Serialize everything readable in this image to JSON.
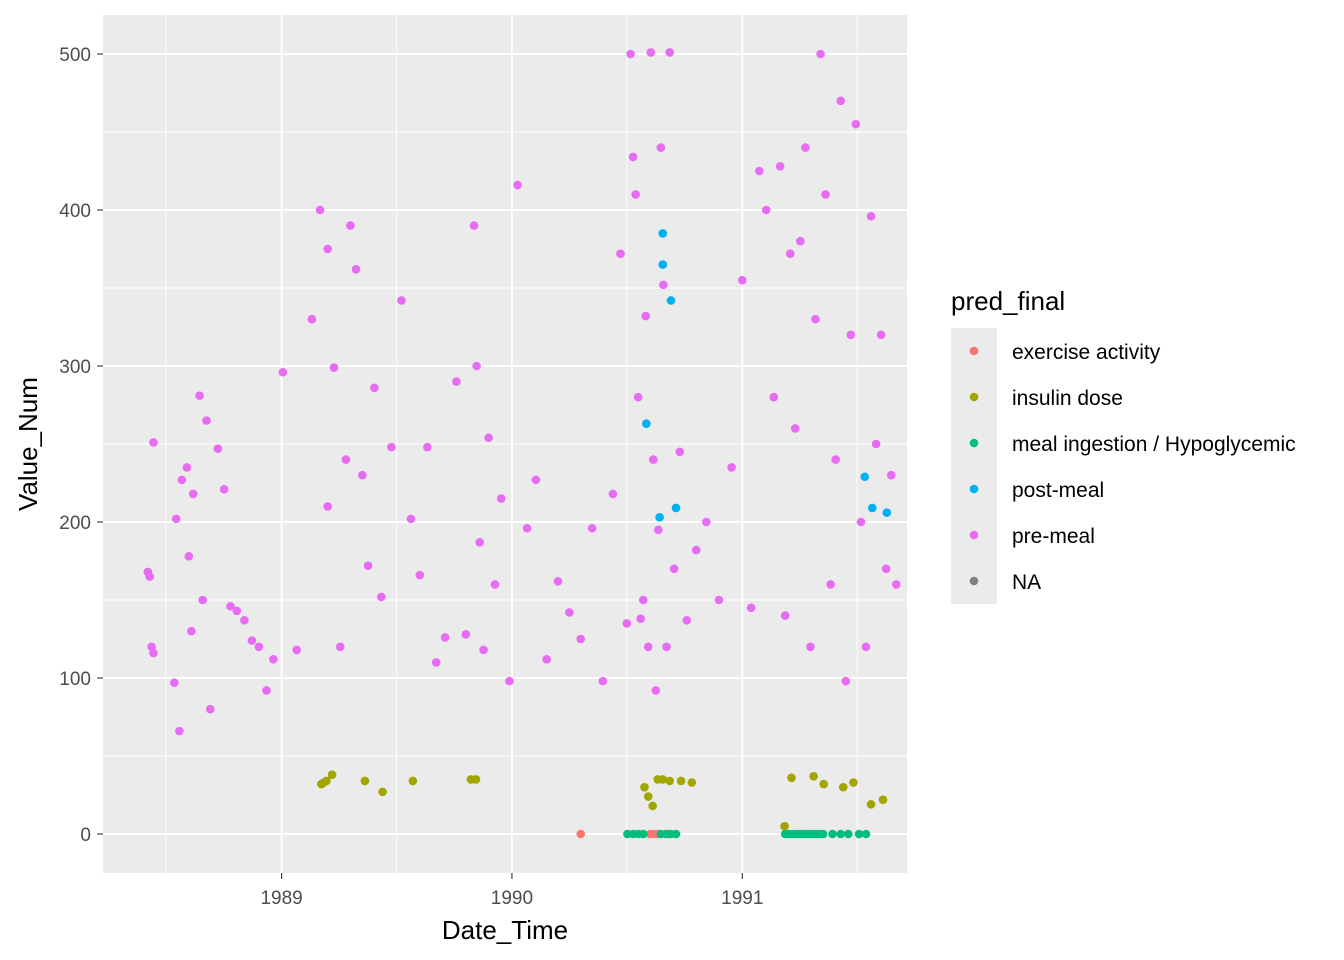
{
  "chart_data": {
    "type": "scatter",
    "title": "",
    "xlabel": "Date_Time",
    "ylabel": "Value_Num",
    "xlim": [
      "1988-03-24",
      "1991-09-19"
    ],
    "ylim": [
      -25,
      525
    ],
    "x_ticks": [
      "1989",
      "1990",
      "1991"
    ],
    "y_ticks": [
      "0",
      "100",
      "200",
      "300",
      "400",
      "500"
    ],
    "x_tick_dates": [
      "1989-01-01",
      "1990-01-01",
      "1991-01-01"
    ],
    "y_tick_values": [
      0,
      100,
      200,
      300,
      400,
      500
    ],
    "grid": true,
    "panel_background": "#EBEBEB",
    "legend": {
      "title": "pred_final",
      "position": "right",
      "entries": [
        "exercise activity",
        "insulin dose",
        "meal ingestion / Hypoglycemic",
        "post-meal",
        "pre-meal",
        "NA"
      ],
      "colors": [
        "#F8766D",
        "#A3A500",
        "#00BF7D",
        "#00B0F6",
        "#E76BF3",
        "#7F7F7F"
      ]
    },
    "series": [
      {
        "name": "exercise activity",
        "color": "#F8766D",
        "x": [
          "1990-04-20",
          "1990-08-08",
          "1990-08-15",
          "1990-08-20",
          "1990-09-05"
        ],
        "y": [
          0,
          0,
          0,
          0,
          0
        ]
      },
      {
        "name": "insulin dose",
        "color": "#A3A500",
        "x": [
          "1989-03-05",
          "1989-03-09",
          "1989-03-13",
          "1989-03-22",
          "1989-05-13",
          "1989-06-10",
          "1989-07-28",
          "1989-10-28",
          "1989-11-05",
          "1990-07-30",
          "1990-08-05",
          "1990-08-12",
          "1990-08-20",
          "1990-08-28",
          "1990-09-08",
          "1990-09-26",
          "1990-10-13",
          "1991-03-09",
          "1991-03-20",
          "1991-04-24",
          "1991-05-10",
          "1991-06-10",
          "1991-06-26",
          "1991-07-24",
          "1991-08-12"
        ],
        "y": [
          32,
          33,
          34,
          38,
          34,
          27,
          34,
          35,
          35,
          30,
          24,
          18,
          35,
          35,
          34,
          34,
          33,
          5,
          36,
          37,
          32,
          30,
          33,
          19,
          22
        ]
      },
      {
        "name": "meal ingestion / Hypoglycemic",
        "color": "#00BF7D",
        "x": [
          "1990-07-03",
          "1990-07-12",
          "1990-07-20",
          "1990-07-28",
          "1990-08-25",
          "1990-09-02",
          "1990-09-10",
          "1990-09-18",
          "1991-03-10",
          "1991-03-16",
          "1991-03-22",
          "1991-03-28",
          "1991-04-03",
          "1991-04-09",
          "1991-04-15",
          "1991-04-21",
          "1991-04-27",
          "1991-05-03",
          "1991-05-09",
          "1991-05-24",
          "1991-06-06",
          "1991-06-18",
          "1991-07-05",
          "1991-07-16"
        ],
        "y": [
          0,
          0,
          0,
          0,
          0,
          0,
          0,
          0,
          0,
          0,
          0,
          0,
          0,
          0,
          0,
          0,
          0,
          0,
          0,
          0,
          0,
          0,
          0,
          0
        ]
      },
      {
        "name": "post-meal",
        "color": "#00B0F6",
        "x": [
          "1990-08-02",
          "1990-08-23",
          "1990-08-28",
          "1990-08-28",
          "1990-09-10",
          "1990-09-18",
          "1991-07-14",
          "1991-07-26",
          "1991-08-18"
        ],
        "y": [
          263,
          203,
          365,
          385,
          342,
          209,
          229,
          209,
          206
        ]
      },
      {
        "name": "pre-meal",
        "color": "#E76BF3",
        "x": [
          "1988-06-03",
          "1988-06-06",
          "1988-06-09",
          "1988-06-12",
          "1988-06-12",
          "1988-07-15",
          "1988-07-18",
          "1988-07-23",
          "1988-07-27",
          "1988-08-04",
          "1988-08-07",
          "1988-08-11",
          "1988-08-14",
          "1988-08-24",
          "1988-08-29",
          "1988-09-04",
          "1988-09-10",
          "1988-09-22",
          "1988-10-02",
          "1988-10-12",
          "1988-10-22",
          "1988-11-03",
          "1988-11-15",
          "1988-11-26",
          "1988-12-08",
          "1988-12-19",
          "1989-01-03",
          "1989-01-25",
          "1989-02-18",
          "1989-03-03",
          "1989-03-15",
          "1989-03-15",
          "1989-03-25",
          "1989-04-04",
          "1989-04-13",
          "1989-04-20",
          "1989-04-29",
          "1989-05-09",
          "1989-05-18",
          "1989-05-28",
          "1989-06-08",
          "1989-06-24",
          "1989-07-10",
          "1989-07-25",
          "1989-08-08",
          "1989-08-20",
          "1989-09-03",
          "1989-09-17",
          "1989-10-05",
          "1989-10-20",
          "1989-11-02",
          "1989-11-06",
          "1989-11-11",
          "1989-11-17",
          "1989-11-25",
          "1989-12-05",
          "1989-12-15",
          "1989-12-28",
          "1990-01-10",
          "1990-01-25",
          "1990-02-08",
          "1990-02-25",
          "1990-03-15",
          "1990-04-02",
          "1990-04-20",
          "1990-05-08",
          "1990-05-25",
          "1990-06-10",
          "1990-06-22",
          "1990-07-02",
          "1990-07-08",
          "1990-07-12",
          "1990-07-16",
          "1990-07-20",
          "1990-07-24",
          "1990-07-28",
          "1990-08-01",
          "1990-08-05",
          "1990-08-09",
          "1990-08-13",
          "1990-08-17",
          "1990-08-21",
          "1990-08-25",
          "1990-08-29",
          "1990-09-03",
          "1990-09-08",
          "1990-09-15",
          "1990-09-24",
          "1990-10-05",
          "1990-10-20",
          "1990-11-05",
          "1990-11-25",
          "1990-12-15",
          "1991-01-01",
          "1991-01-15",
          "1991-01-28",
          "1991-02-08",
          "1991-02-20",
          "1991-03-02",
          "1991-03-10",
          "1991-03-18",
          "1991-03-26",
          "1991-04-03",
          "1991-04-11",
          "1991-04-19",
          "1991-04-27",
          "1991-05-05",
          "1991-05-13",
          "1991-05-21",
          "1991-05-29",
          "1991-06-06",
          "1991-06-14",
          "1991-06-22",
          "1991-06-30",
          "1991-07-08",
          "1991-07-16",
          "1991-07-24",
          "1991-08-01",
          "1991-08-09",
          "1991-08-17",
          "1991-08-25",
          "1991-09-02"
        ],
        "y": [
          168,
          165,
          120,
          116,
          251,
          97,
          202,
          66,
          227,
          235,
          178,
          130,
          218,
          281,
          150,
          265,
          80,
          247,
          221,
          146,
          143,
          137,
          124,
          120,
          92,
          112,
          296,
          118,
          330,
          400,
          375,
          210,
          299,
          120,
          240,
          390,
          362,
          230,
          172,
          286,
          152,
          248,
          342,
          202,
          166,
          248,
          110,
          126,
          290,
          128,
          390,
          300,
          187,
          118,
          254,
          160,
          215,
          98,
          416,
          196,
          227,
          112,
          162,
          142,
          125,
          196,
          98,
          218,
          372,
          135,
          500,
          434,
          410,
          280,
          138,
          150,
          332,
          120,
          501,
          240,
          92,
          195,
          440,
          352,
          120,
          501,
          170,
          245,
          137,
          182,
          200,
          150,
          235,
          355,
          145,
          425,
          400,
          280,
          428,
          140,
          372,
          260,
          380,
          440,
          120,
          330,
          500,
          410,
          160,
          240,
          470,
          98,
          320,
          455,
          200,
          120,
          396,
          250,
          320,
          170,
          230,
          160
        ]
      }
    ]
  }
}
